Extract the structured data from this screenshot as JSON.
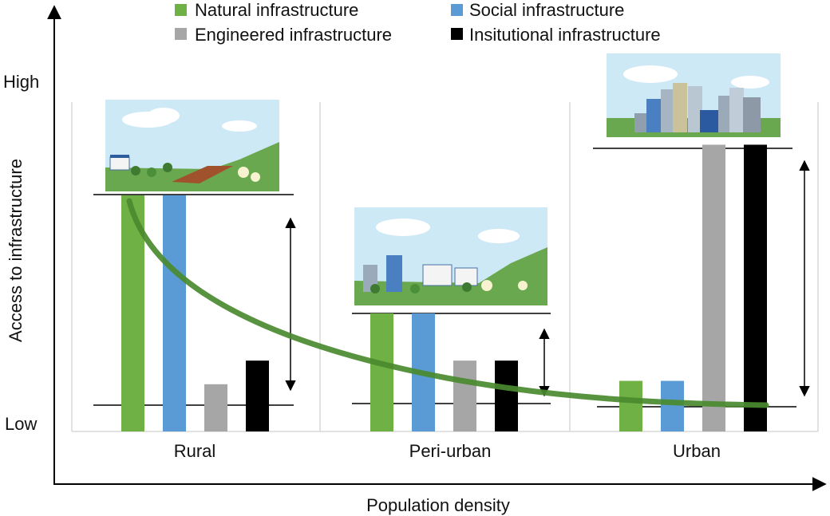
{
  "legend": [
    {
      "label": "Natural infrastructure",
      "color": "#6fb144"
    },
    {
      "label": "Social infrastructure",
      "color": "#5b9bd5"
    },
    {
      "label": "Engineered infrastructure",
      "color": "#a6a6a6"
    },
    {
      "label": "Insitutional infrastructure",
      "color": "#000000"
    }
  ],
  "axes": {
    "x_label": "Population density",
    "y_label": "Access to infrastructure",
    "y_high": "High",
    "y_low": "Low"
  },
  "chart_data": {
    "type": "bar",
    "categories": [
      "Rural",
      "Peri-urban",
      "Urban"
    ],
    "series": [
      {
        "name": "Natural infrastructure",
        "values": [
          0.7,
          0.35,
          0.15
        ]
      },
      {
        "name": "Social infrastructure",
        "values": [
          0.7,
          0.35,
          0.15
        ]
      },
      {
        "name": "Engineered infrastructure",
        "values": [
          0.14,
          0.21,
          0.85
        ]
      },
      {
        "name": "Insitutional infrastructure",
        "values": [
          0.21,
          0.21,
          0.85
        ]
      }
    ],
    "ylim": [
      0,
      1
    ],
    "curve": "decreasing trend across population density",
    "colors": {
      "trend_curve": "#4a8a2f",
      "grid": "#d9d9d9"
    }
  }
}
